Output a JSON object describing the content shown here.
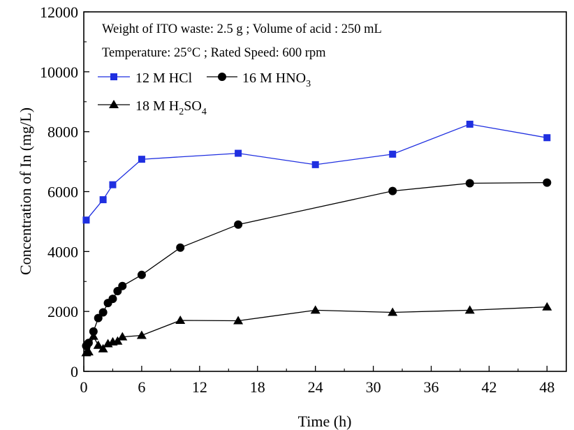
{
  "chart_data": {
    "type": "line",
    "xlabel": "Time (h)",
    "ylabel": "Concentration of In (mg/L)",
    "xlim": [
      0,
      50
    ],
    "ylim": [
      0,
      12000
    ],
    "xticks": [
      0,
      6,
      12,
      18,
      24,
      30,
      36,
      42,
      48
    ],
    "yticks": [
      0,
      2000,
      4000,
      6000,
      8000,
      10000,
      12000
    ],
    "grid": false,
    "legend_position": "top-left",
    "annotations": [
      "Weight of ITO waste: 2.5 g ; Volume of acid : 250 mL",
      "Temperature: 25°C ; Rated Speed: 600 rpm"
    ],
    "series": [
      {
        "name": "12 M HCl",
        "legend_main": "12 M HCl",
        "color": "#1f2fe0",
        "marker": "square",
        "x": [
          0.25,
          2,
          3,
          6,
          16,
          24,
          32,
          40,
          48
        ],
        "y": [
          5050,
          5730,
          6230,
          7080,
          7280,
          6900,
          7250,
          8250,
          7800
        ]
      },
      {
        "name": "16 M HNO3",
        "legend_main": "16 M HNO",
        "legend_sub": "3",
        "color": "#000000",
        "marker": "circle",
        "x": [
          0.25,
          0.5,
          1,
          1.5,
          2,
          2.5,
          3,
          3.5,
          4,
          6,
          10,
          16,
          32,
          40,
          48
        ],
        "y": [
          850,
          950,
          1330,
          1780,
          1970,
          2280,
          2420,
          2680,
          2850,
          3220,
          4130,
          4900,
          6020,
          6280,
          6300
        ]
      },
      {
        "name": "18 M H2SO4",
        "legend_main": "18 M H",
        "legend_sub1": "2",
        "legend_mid": "SO",
        "legend_sub2": "4",
        "color": "#000000",
        "marker": "triangle",
        "x": [
          0.25,
          0.5,
          1,
          1.5,
          2,
          2.5,
          3,
          3.5,
          4,
          6,
          10,
          16,
          24,
          32,
          40,
          48
        ],
        "y": [
          620,
          650,
          1170,
          870,
          750,
          920,
          980,
          1010,
          1150,
          1200,
          1700,
          1690,
          2040,
          1970,
          2040,
          2150
        ]
      }
    ]
  }
}
